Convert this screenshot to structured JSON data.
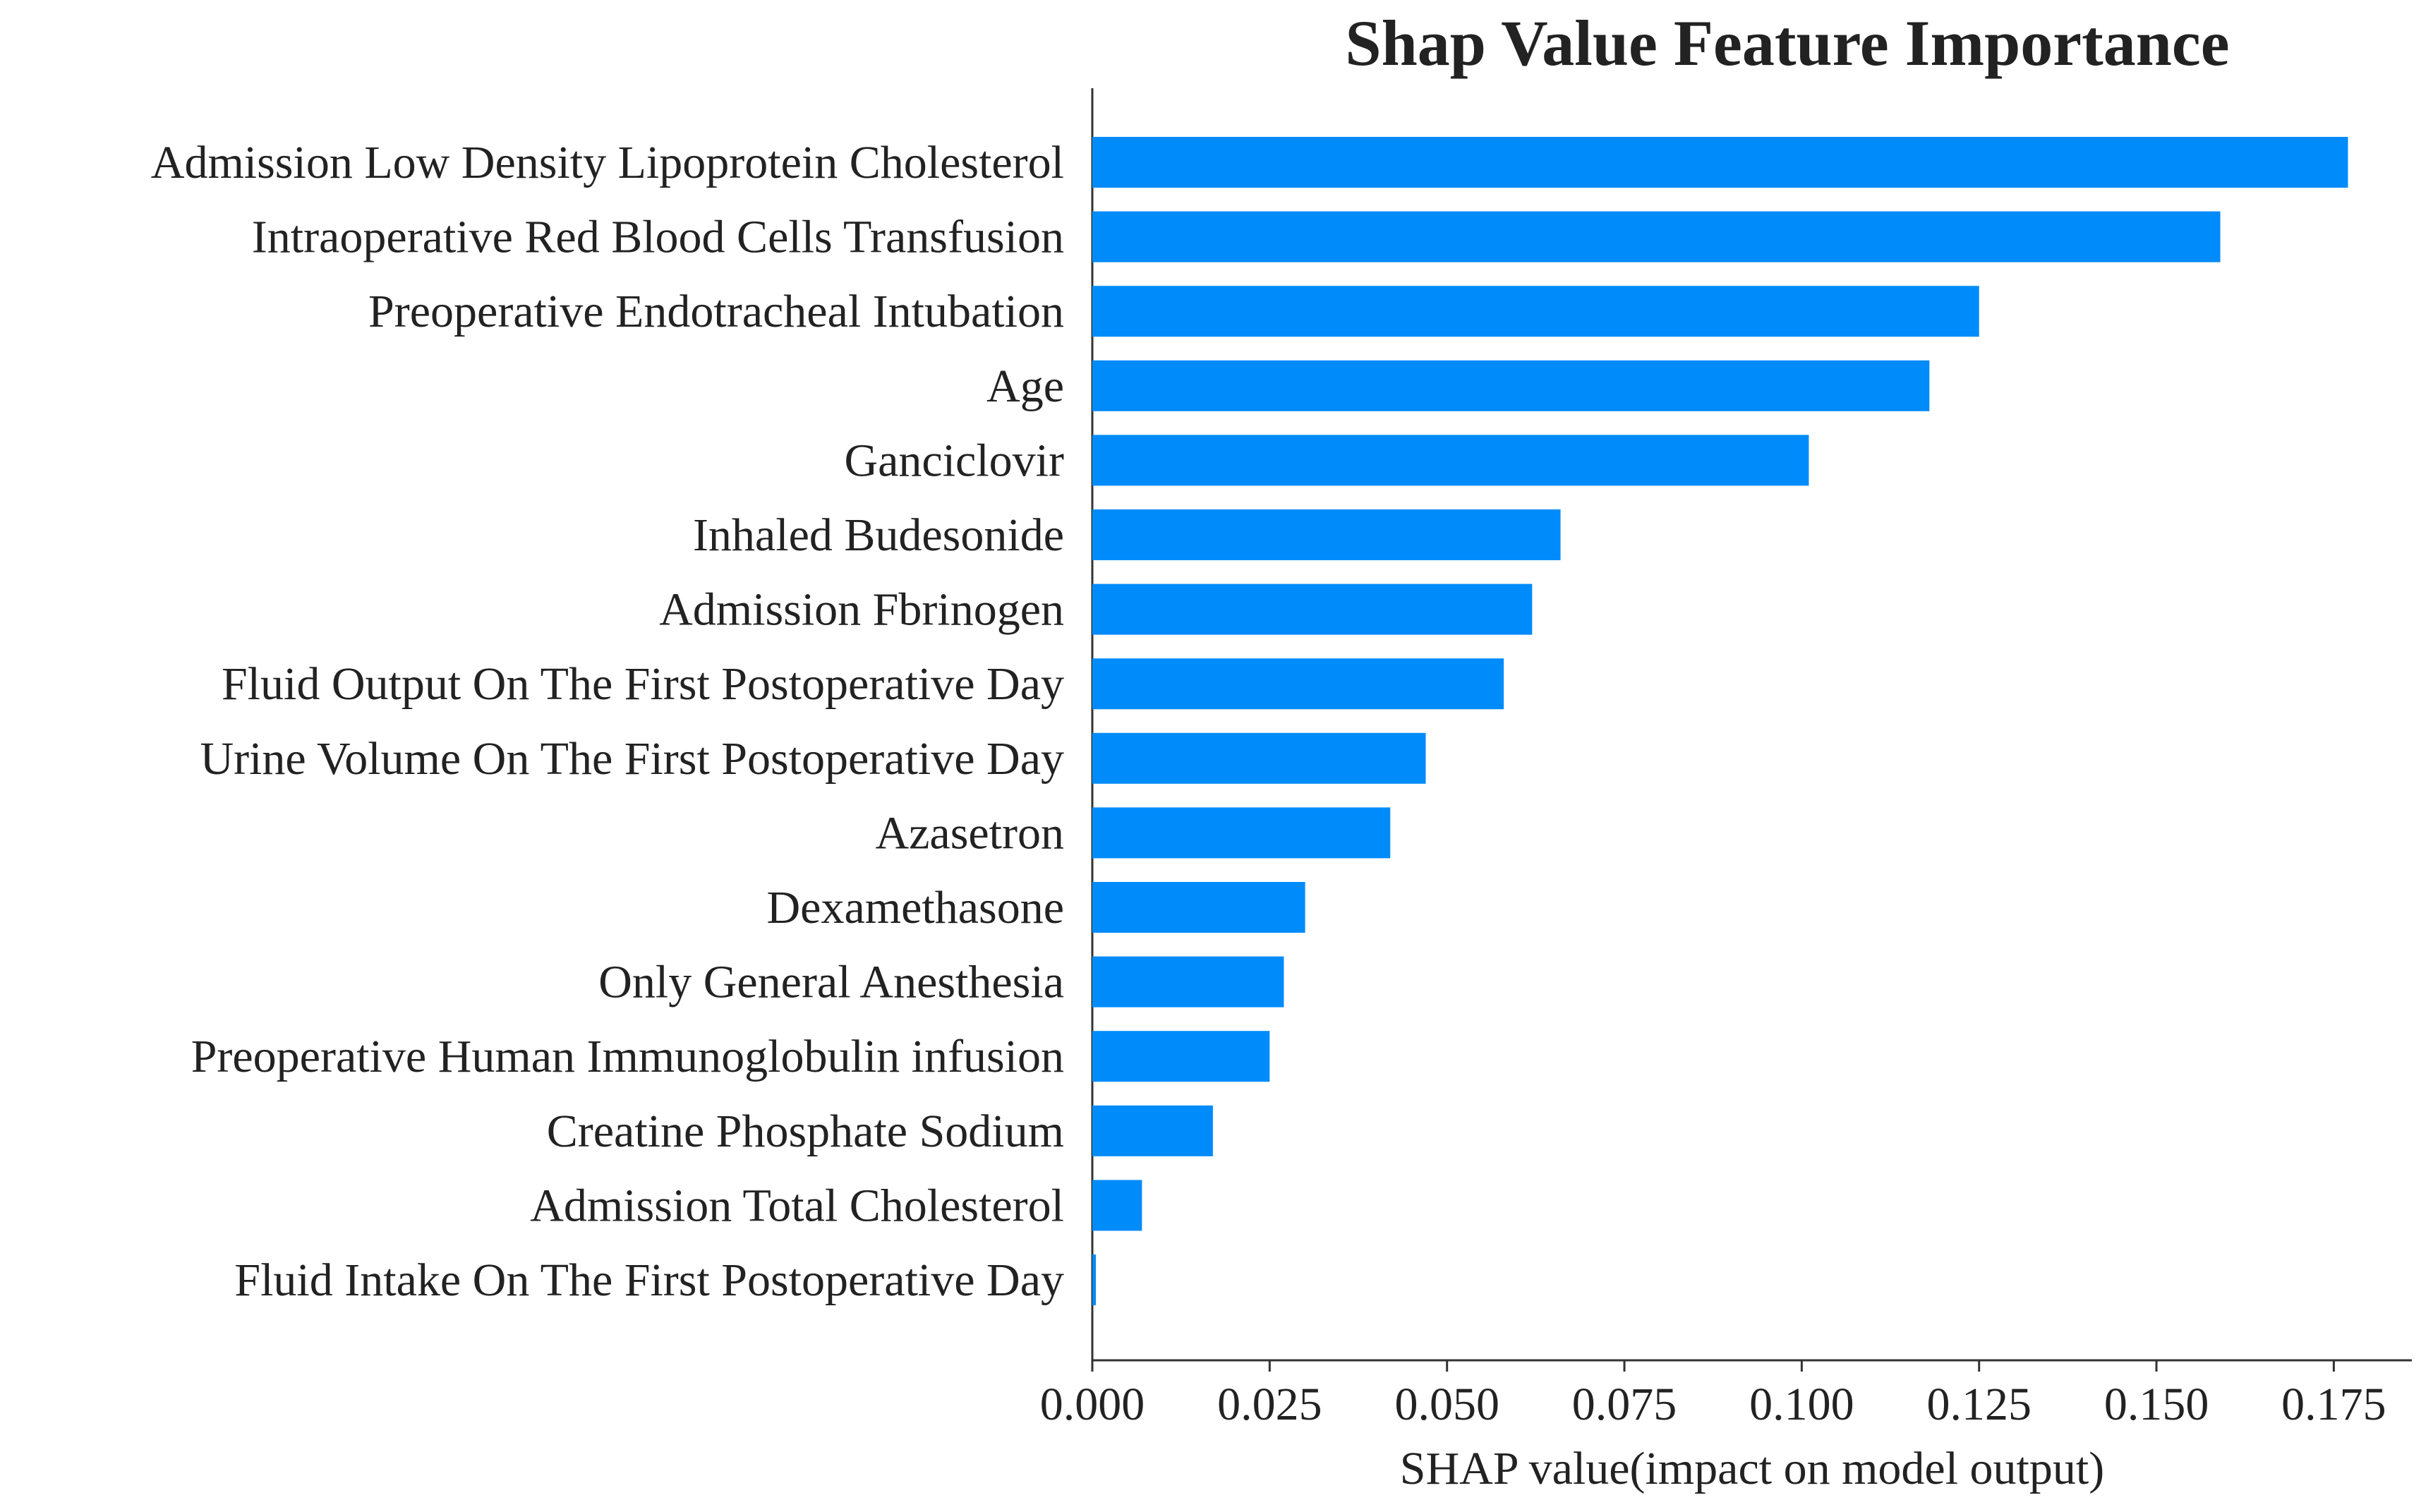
{
  "chart_data": {
    "type": "bar",
    "orientation": "horizontal",
    "title": "Shap Value Feature Importance",
    "xlabel": "SHAP value(impact on model output)",
    "ylabel": "",
    "xlim": [
      0,
      0.186
    ],
    "xticks": [
      0.0,
      0.025,
      0.05,
      0.075,
      0.1,
      0.125,
      0.15,
      0.175
    ],
    "xtick_labels": [
      "0.000",
      "0.025",
      "0.050",
      "0.075",
      "0.100",
      "0.125",
      "0.150",
      "0.175"
    ],
    "grid": false,
    "bar_color": "#008bfb",
    "categories": [
      "Admission Low Density Lipoprotein Cholesterol",
      "Intraoperative Red Blood Cells Transfusion",
      "Preoperative Endotracheal Intubation",
      "Age",
      "Ganciclovir",
      "Inhaled Budesonide",
      "Admission Fbrinogen",
      "Fluid Output On The First Postoperative Day",
      "Urine Volume On The First Postoperative Day",
      "Azasetron",
      "Dexamethasone",
      "Only General Anesthesia",
      "Preoperative Human Immunoglobulin infusion",
      "Creatine Phosphate Sodium",
      "Admission Total Cholesterol",
      "Fluid Intake On The First Postoperative Day"
    ],
    "values": [
      0.177,
      0.159,
      0.125,
      0.118,
      0.101,
      0.066,
      0.062,
      0.058,
      0.047,
      0.042,
      0.03,
      0.027,
      0.025,
      0.017,
      0.007,
      0.0005
    ]
  }
}
